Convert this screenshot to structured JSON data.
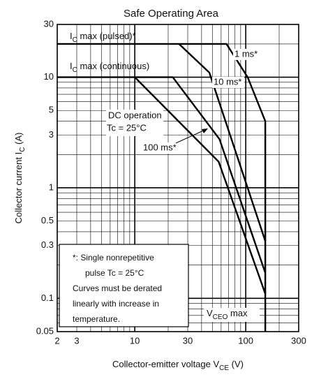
{
  "chart_data": {
    "type": "line",
    "title": "Safe Operating Area",
    "x_label": [
      "Collector-emitter voltage  V",
      "CE",
      "  (V)"
    ],
    "y_label": [
      "Collector current  I",
      "C",
      "  (A)"
    ],
    "log_x": true,
    "log_y": true,
    "grid": true,
    "color": "#000000",
    "xlim": [
      2,
      300
    ],
    "ylim": [
      0.05,
      30
    ],
    "xticks": [
      2,
      3,
      10,
      30,
      100,
      300
    ],
    "yticks": [
      0.05,
      0.1,
      0.3,
      0.5,
      1,
      3,
      5,
      10,
      30
    ],
    "xgrid": [
      2,
      3,
      4,
      5,
      6,
      7,
      8,
      9,
      10,
      20,
      30,
      40,
      50,
      60,
      70,
      80,
      90,
      100,
      200,
      300
    ],
    "ygrid": [
      0.05,
      0.06,
      0.07,
      0.08,
      0.09,
      0.1,
      0.2,
      0.3,
      0.4,
      0.5,
      0.6,
      0.7,
      0.8,
      0.9,
      1,
      2,
      3,
      4,
      5,
      6,
      7,
      8,
      9,
      10,
      20,
      30
    ],
    "series": [
      {
        "name": "1 ms*",
        "x": [
          2,
          67,
          104,
          150,
          150
        ],
        "values": [
          20,
          20,
          10,
          4,
          0.05
        ]
      },
      {
        "name": "10 ms*",
        "x": [
          25,
          47,
          150
        ],
        "values": [
          20,
          11,
          0.33
        ]
      },
      {
        "name": "DC operation",
        "x": [
          2,
          22,
          58,
          150
        ],
        "values": [
          10,
          10,
          2.75,
          0.17
        ]
      },
      {
        "name": "100 ms*",
        "x": [
          10,
          57,
          150
        ],
        "values": [
          10,
          1.72,
          0.11
        ]
      }
    ],
    "annotations": {
      "pulsed": [
        "I",
        "C",
        " max (pulsed)*"
      ],
      "continuous": [
        "I",
        "C",
        " max (continuous)"
      ],
      "dc_temp": "Tc = 25°C",
      "vceo": [
        "V",
        "CEO",
        " max"
      ],
      "note": [
        "*:  Single nonrepetitive",
        "pulse    Tc = 25°C",
        "Curves must be derated",
        "linearly with increase in",
        "temperature."
      ]
    }
  }
}
